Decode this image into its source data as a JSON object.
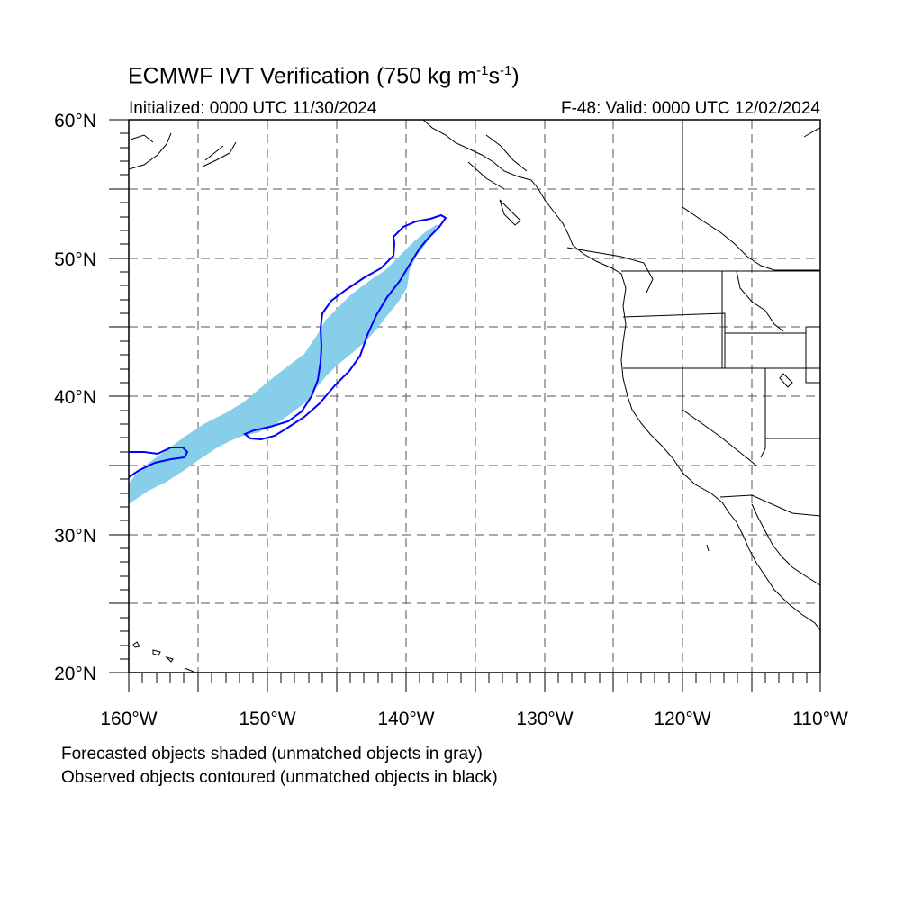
{
  "map": {
    "title_main": "ECMWF IVT Verification (750 kg m",
    "title_sup1": "-1",
    "title_mid": "s",
    "title_sup2": "-1",
    "title_end": ")",
    "initialized": "Initialized: 0000 UTC 11/30/2024",
    "valid": "F-48: Valid: 0000 UTC 12/02/2024",
    "lat_labels": [
      "60°N",
      "50°N",
      "40°N",
      "30°N",
      "20°N"
    ],
    "lon_labels": [
      "160°W",
      "150°W",
      "140°W",
      "130°W",
      "120°W",
      "110°W"
    ],
    "extent": {
      "lon_min": -160,
      "lon_max": -110,
      "lat_min": 20,
      "lat_max": 60
    },
    "forecast_fill_color": "#87ceeb",
    "observed_contour_color": "#0000ff",
    "grid": "dashed"
  },
  "notes": {
    "line1": "Forecasted objects shaded (unmatched objects in gray)",
    "line2": "Observed objects contoured (unmatched objects in black)"
  }
}
